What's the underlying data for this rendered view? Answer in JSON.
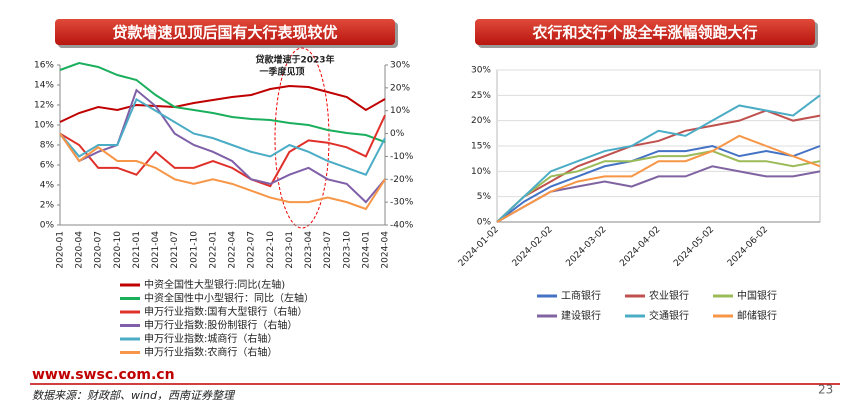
{
  "chart_data": [
    {
      "type": "line",
      "title": "贷款增速见顶后国有大行表现较优",
      "annotation": [
        "贷款增速于2023年",
        "一季度见顶"
      ],
      "categories": [
        "2020-01",
        "2020-04",
        "2020-07",
        "2020-10",
        "2021-01",
        "2021-04",
        "2021-07",
        "2021-10",
        "2022-01",
        "2022-04",
        "2022-07",
        "2022-10",
        "2023-01",
        "2023-04",
        "2023-07",
        "2023-10",
        "2024-01",
        "2024-04"
      ],
      "ylim": [
        0,
        16
      ],
      "yticks": [
        {
          "value": 0,
          "label": "0%"
        },
        {
          "value": 2,
          "label": "2%"
        },
        {
          "value": 4,
          "label": "4%"
        },
        {
          "value": 6,
          "label": "6%"
        },
        {
          "value": 8,
          "label": "8%"
        },
        {
          "value": 10,
          "label": "10%"
        },
        {
          "value": 12,
          "label": "12%"
        },
        {
          "value": 14,
          "label": "14%"
        },
        {
          "value": 16,
          "label": "16%"
        }
      ],
      "y2lim": [
        -40,
        30
      ],
      "y2ticks": [
        {
          "value": -40,
          "label": "-40%"
        },
        {
          "value": -30,
          "label": "-30%"
        },
        {
          "value": -20,
          "label": "-20%"
        },
        {
          "value": -10,
          "label": "-10%"
        },
        {
          "value": 0,
          "label": "0%"
        },
        {
          "value": 10,
          "label": "10%"
        },
        {
          "value": 20,
          "label": "20%"
        },
        {
          "value": 30,
          "label": "30%"
        }
      ],
      "series": [
        {
          "name": "中资全国性大型银行:同比(左轴)",
          "color": "#c00000",
          "values": [
            10.3,
            11.2,
            11.8,
            11.5,
            12.0,
            11.9,
            11.8,
            12.2,
            12.5,
            12.8,
            13.0,
            13.6,
            13.9,
            13.8,
            13.3,
            12.8,
            11.5,
            12.6
          ]
        },
        {
          "name": "中资全国性中小型银行：同比（左轴）",
          "color": "#1aaf5d",
          "values": [
            15.5,
            16.2,
            15.8,
            15.0,
            14.5,
            13.0,
            11.8,
            11.5,
            11.2,
            10.8,
            10.6,
            10.5,
            10.2,
            10.0,
            9.5,
            9.2,
            9.0,
            8.3
          ]
        },
        {
          "name": "申万行业指数:国有大型银行（右轴）",
          "color": "#e0302a",
          "values": [
            0,
            -5,
            -15,
            -15,
            -18,
            -8,
            -15,
            -15,
            -12,
            -15,
            -20,
            -23,
            -8,
            -3,
            -4,
            -6,
            -10,
            8
          ],
          "axis": "y2"
        },
        {
          "name": "申万行业指数:股份制银行（右轴）",
          "color": "#7f60a8",
          "values": [
            0,
            -12,
            -8,
            -5,
            19,
            12,
            0,
            -5,
            -8,
            -12,
            -20,
            -22,
            -18,
            -15,
            -20,
            -22,
            -30,
            -20
          ],
          "axis": "y2"
        },
        {
          "name": "申万行业指数:城商行（右轴）",
          "color": "#4bacc6",
          "values": [
            0,
            -10,
            -5,
            -5,
            15,
            10,
            5,
            0,
            -2,
            -5,
            -8,
            -10,
            -5,
            -8,
            -12,
            -15,
            -18,
            -2
          ],
          "axis": "y2"
        },
        {
          "name": "申万行业指数:农商行（右轴）",
          "color": "#f79646",
          "values": [
            0,
            -12,
            -6,
            -12,
            -12,
            -15,
            -20,
            -22,
            -20,
            -22,
            -25,
            -28,
            -30,
            -30,
            -28,
            -30,
            -33,
            -20
          ],
          "axis": "y2"
        }
      ]
    },
    {
      "type": "line",
      "title": "农行和交行个股全年涨幅领跑大行",
      "categories": [
        "2024-01-02",
        null,
        "2024-02-02",
        null,
        "2024-03-02",
        null,
        "2024-04-02",
        null,
        "2024-05-02",
        null,
        "2024-06-02",
        null,
        null
      ],
      "ylim": [
        0,
        30
      ],
      "yticks": [
        {
          "value": 0,
          "label": "0%"
        },
        {
          "value": 5,
          "label": "5%"
        },
        {
          "value": 10,
          "label": "10%"
        },
        {
          "value": 15,
          "label": "15%"
        },
        {
          "value": 20,
          "label": "20%"
        },
        {
          "value": 25,
          "label": "25%"
        },
        {
          "value": 30,
          "label": "30%"
        }
      ],
      "series": [
        {
          "name": "工商银行",
          "color": "#4472c4",
          "values": [
            0,
            4,
            7,
            9,
            11,
            12,
            14,
            14,
            15,
            13,
            14,
            13,
            15
          ]
        },
        {
          "name": "农业银行",
          "color": "#c0504d",
          "values": [
            0,
            5,
            8,
            11,
            13,
            15,
            16,
            18,
            19,
            20,
            22,
            20,
            21
          ]
        },
        {
          "name": "中国银行",
          "color": "#9bbb59",
          "values": [
            0,
            5,
            9,
            10,
            12,
            12,
            13,
            13,
            14,
            12,
            12,
            11,
            12
          ]
        },
        {
          "name": "建设银行",
          "color": "#8064a2",
          "values": [
            0,
            3,
            6,
            7,
            8,
            7,
            9,
            9,
            11,
            10,
            9,
            9,
            10
          ]
        },
        {
          "name": "交通银行",
          "color": "#4bacc6",
          "values": [
            0,
            5,
            10,
            12,
            14,
            15,
            18,
            17,
            20,
            23,
            22,
            21,
            25
          ]
        },
        {
          "name": "邮储银行",
          "color": "#f79646",
          "values": [
            0,
            3,
            6,
            8,
            9,
            9,
            12,
            12,
            14,
            17,
            15,
            13,
            11
          ]
        }
      ]
    }
  ],
  "footer": {
    "site": "www.swsc.com.cn",
    "source": "数据来源：财政部、wind，西南证券整理",
    "page": "23"
  }
}
